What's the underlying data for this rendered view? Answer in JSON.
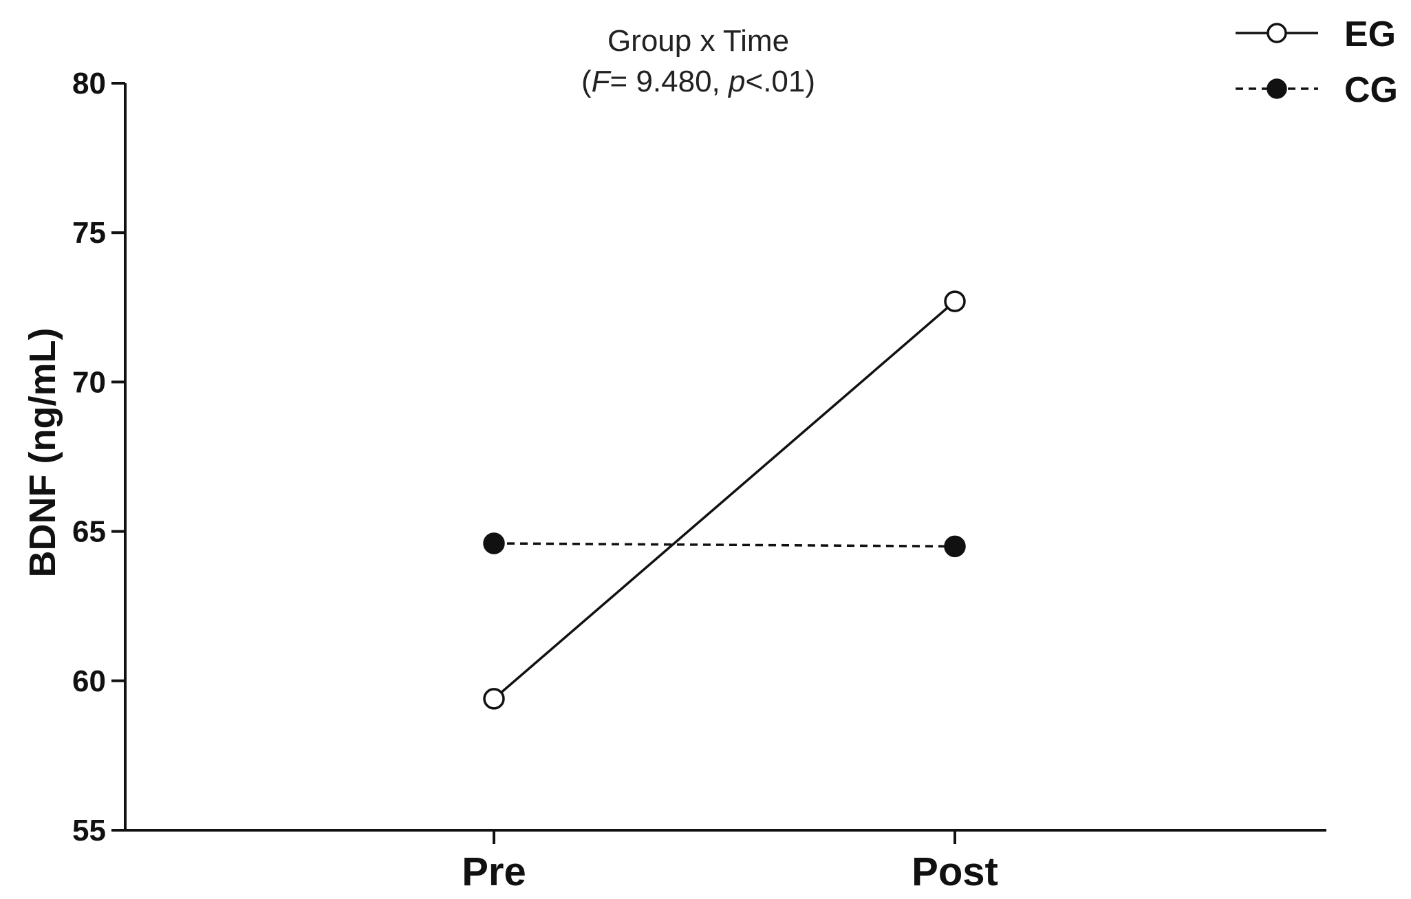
{
  "chart_data": {
    "type": "line",
    "categories": [
      "Pre",
      "Post"
    ],
    "ylabel": "BDNF (ng/mL)",
    "xlabel": "",
    "ylim": [
      55,
      80
    ],
    "yticks": [
      55,
      60,
      65,
      70,
      75,
      80
    ],
    "ytick_labels": [
      "55",
      "60",
      "65",
      "70",
      "75",
      "80"
    ],
    "grid": false,
    "legend_position": "top-right",
    "annotation": {
      "line1": "Group x Time",
      "line2_open": "(",
      "line2_f": "F",
      "line2_mid": "= 9.480, ",
      "line2_p": "p",
      "line2_end": "<.01)"
    },
    "series": [
      {
        "name": "EG",
        "values": [
          59.4,
          72.7
        ],
        "marker": "open-circle",
        "line_style": "solid",
        "color": "#111111"
      },
      {
        "name": "CG",
        "values": [
          64.6,
          64.5
        ],
        "marker": "filled-circle",
        "line_style": "dashed",
        "color": "#111111"
      }
    ]
  }
}
